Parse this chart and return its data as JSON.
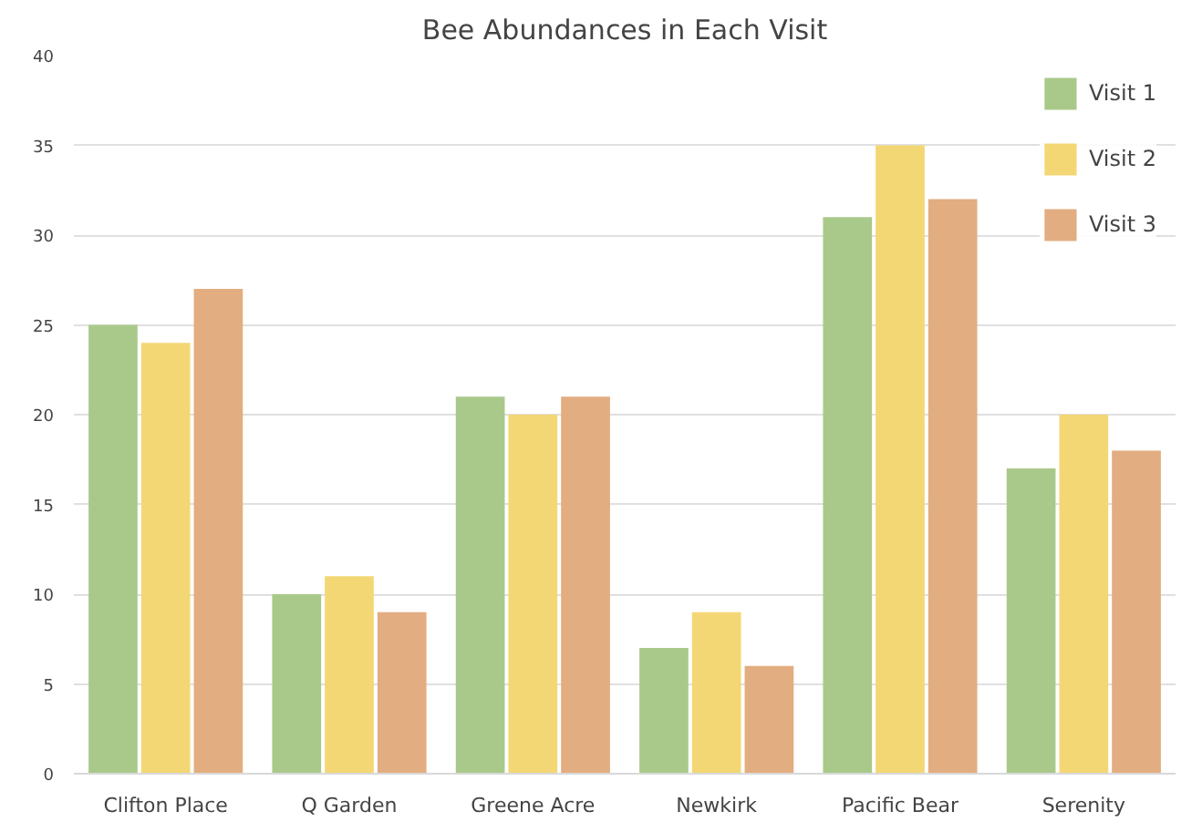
{
  "chart_data": {
    "type": "bar",
    "title": "Bee Abundances in Each Visit",
    "categories": [
      "Clifton Place",
      "Q Garden",
      "Greene Acre",
      "Newkirk",
      "Pacific Bear",
      "Serenity"
    ],
    "series": [
      {
        "name": "Visit 1",
        "color": "#a9c98a",
        "values": [
          25,
          10,
          21,
          7,
          31,
          17
        ]
      },
      {
        "name": "Visit 2",
        "color": "#f3d774",
        "values": [
          24,
          11,
          20,
          9,
          35,
          20
        ]
      },
      {
        "name": "Visit 3",
        "color": "#e2ad80",
        "values": [
          27,
          9,
          21,
          6,
          32,
          18
        ]
      }
    ],
    "ylim": [
      0,
      40
    ],
    "yticks": [
      0,
      5,
      10,
      15,
      20,
      25,
      30,
      35,
      40
    ],
    "grid": "y",
    "legend": "top right"
  }
}
